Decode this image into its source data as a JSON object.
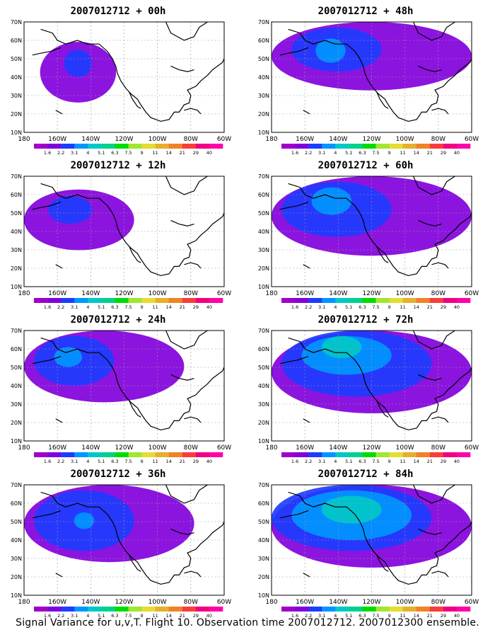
{
  "panels": [
    {
      "title": "2007012712 + 00h"
    },
    {
      "title": "2007012712 + 48h"
    },
    {
      "title": "2007012712 + 12h"
    },
    {
      "title": "2007012712 + 60h"
    },
    {
      "title": "2007012712 + 24h"
    },
    {
      "title": "2007012712 + 72h"
    },
    {
      "title": "2007012712 + 36h"
    },
    {
      "title": "2007012712 + 84h"
    }
  ],
  "lat_labels": [
    "70N",
    "60N",
    "50N",
    "40N",
    "30N",
    "20N",
    "10N"
  ],
  "lon_labels": [
    "180",
    "160W",
    "140W",
    "120W",
    "100W",
    "80W",
    "60W"
  ],
  "colorbar": {
    "labels": [
      "1.6",
      "2.2",
      "3.1",
      "4",
      "5.1",
      "6.3",
      "7.5",
      "9",
      "11",
      "14",
      "21",
      "29",
      "40"
    ],
    "colors": [
      "#a000c8",
      "#8200dc",
      "#1e3cff",
      "#0096ff",
      "#00c8c8",
      "#00d28c",
      "#00dc00",
      "#a0e632",
      "#e6dc32",
      "#e6af2d",
      "#f08228",
      "#fa3c3c",
      "#f00082",
      "#ff00aa"
    ]
  },
  "caption": "Signal Variance for u,v,T. Flight 10. Observation time 2007012712. 2007012300 ensemble."
}
